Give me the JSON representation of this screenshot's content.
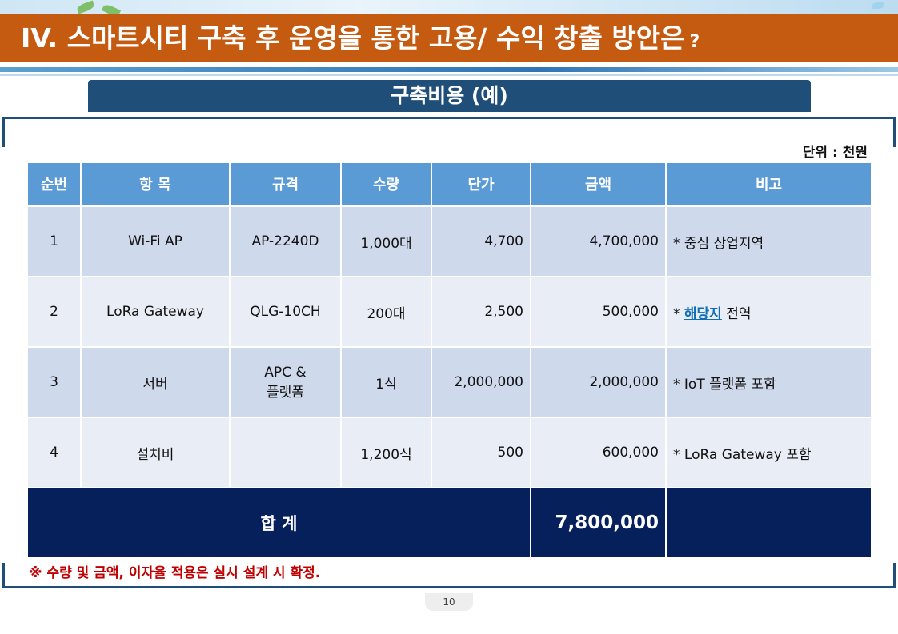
{
  "header": {
    "title": "IV. 스마트시티 구축 후 운영을 통한 고용/ 수익 창출 방안은",
    "title_suffix": "?"
  },
  "section": {
    "title": "구축비용 (예)"
  },
  "table": {
    "unit": "단위 : 천원",
    "columns": [
      "순번",
      "항 목",
      "규격",
      "수량",
      "단가",
      "금액",
      "비고"
    ],
    "rows": [
      {
        "no": "1",
        "item": "Wi-Fi AP",
        "spec": "AP-2240D",
        "qty": "1,000대",
        "unit_price": "4,700",
        "amount": "4,700,000",
        "note": "* 중심 상업지역"
      },
      {
        "no": "2",
        "item": "LoRa Gateway",
        "spec": "QLG-10CH",
        "qty": "200대",
        "unit_price": "2,500",
        "amount": "500,000",
        "note_prefix": "* ",
        "note_link": "해당지",
        "note_suffix": " 전역"
      },
      {
        "no": "3",
        "item": "서버",
        "spec_line1": "APC &",
        "spec_line2": "플랫폼",
        "qty": "1식",
        "unit_price": "2,000,000",
        "amount": "2,000,000",
        "note": "* IoT 플랫폼 포함"
      },
      {
        "no": "4",
        "item": "설치비",
        "spec": "",
        "qty": "1,200식",
        "unit_price": "500",
        "amount": "600,000",
        "note": "* LoRa Gateway 포함"
      }
    ],
    "total_label": "합 계",
    "total_amount": "7,800,000"
  },
  "footnote": "※ 수량 및 금액, 이자율 적용은 실시 설계 시 확정.",
  "page_number": "10",
  "colors": {
    "title_bar": "#c55a11",
    "subtitle_bar": "#1f4e79",
    "header_row": "#5b9bd5",
    "total_row": "#06205c",
    "footnote": "#c00000"
  }
}
